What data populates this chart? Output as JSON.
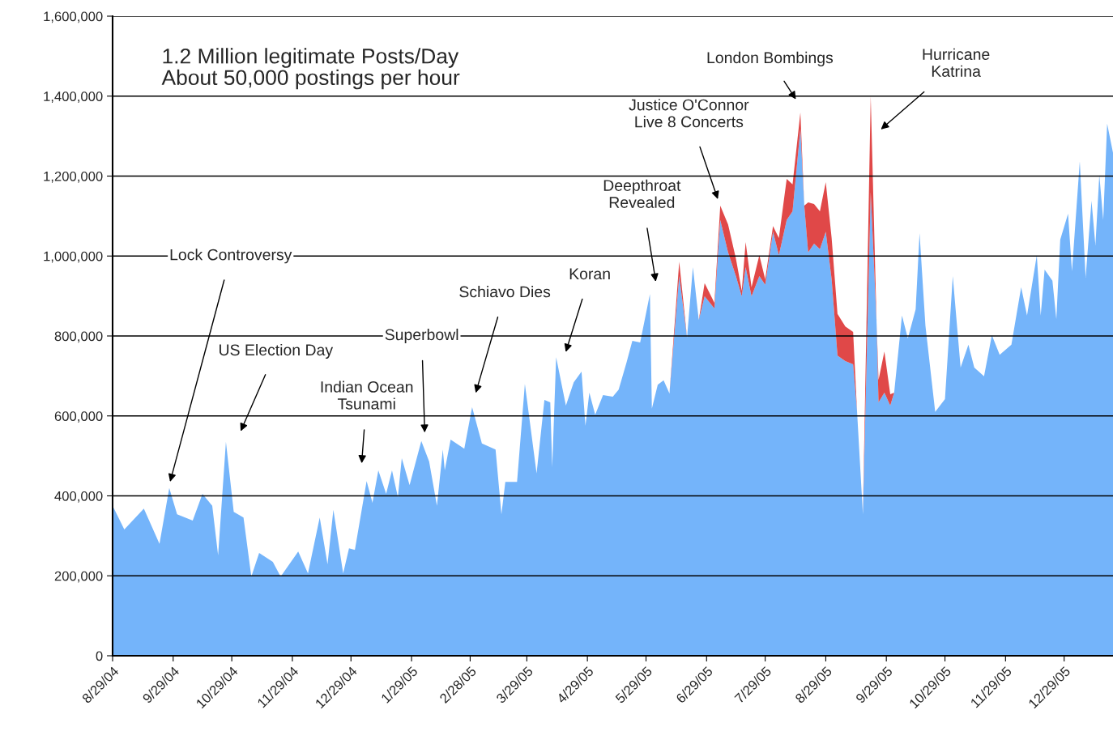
{
  "chart_data": {
    "type": "area",
    "stacked": true,
    "grid": "y",
    "legend": false,
    "x": [
      "2004-08-29",
      "2004-09-04",
      "2004-09-14",
      "2004-09-22",
      "2004-09-27",
      "2004-10-01",
      "2004-10-09",
      "2004-10-14",
      "2004-10-19",
      "2004-10-22",
      "2004-10-26",
      "2004-10-30",
      "2004-11-04",
      "2004-11-08",
      "2004-11-12",
      "2004-11-19",
      "2004-11-23",
      "2004-12-02",
      "2004-12-07",
      "2004-12-13",
      "2004-12-17",
      "2004-12-20",
      "2004-12-25",
      "2004-12-28",
      "2004-12-31",
      "2005-01-06",
      "2005-01-09",
      "2005-01-12",
      "2005-01-16",
      "2005-01-19",
      "2005-01-22",
      "2005-01-24",
      "2005-01-28",
      "2005-02-03",
      "2005-02-07",
      "2005-02-11",
      "2005-02-14",
      "2005-02-15",
      "2005-02-18",
      "2005-02-25",
      "2005-03-01",
      "2005-03-06",
      "2005-03-13",
      "2005-03-16",
      "2005-03-18",
      "2005-03-24",
      "2005-03-28",
      "2005-04-03",
      "2005-04-07",
      "2005-04-10",
      "2005-04-11",
      "2005-04-13",
      "2005-04-18",
      "2005-04-22",
      "2005-04-26",
      "2005-04-28",
      "2005-04-30",
      "2005-05-03",
      "2005-05-07",
      "2005-05-12",
      "2005-05-15",
      "2005-05-19",
      "2005-05-22",
      "2005-05-26",
      "2005-05-31",
      "2005-06-01",
      "2005-06-04",
      "2005-06-07",
      "2005-06-10",
      "2005-06-15",
      "2005-06-19",
      "2005-06-22",
      "2005-06-25",
      "2005-06-28",
      "2005-07-03",
      "2005-07-06",
      "2005-07-10",
      "2005-07-14",
      "2005-07-17",
      "2005-07-19",
      "2005-07-22",
      "2005-07-26",
      "2005-07-29",
      "2005-08-02",
      "2005-08-05",
      "2005-08-09",
      "2005-08-12",
      "2005-08-16",
      "2005-08-18",
      "2005-08-20",
      "2005-08-23",
      "2005-08-26",
      "2005-08-29",
      "2005-09-01",
      "2005-09-04",
      "2005-09-08",
      "2005-09-12",
      "2005-09-14",
      "2005-09-17",
      "2005-09-21",
      "2005-09-24",
      "2005-09-25",
      "2005-09-28",
      "2005-10-01",
      "2005-10-03",
      "2005-10-07",
      "2005-10-10",
      "2005-10-14",
      "2005-10-16",
      "2005-10-19",
      "2005-10-24",
      "2005-10-29",
      "2005-11-02",
      "2005-11-06",
      "2005-11-10",
      "2005-11-13",
      "2005-11-18",
      "2005-11-22",
      "2005-11-26",
      "2005-12-02",
      "2005-12-07",
      "2005-12-10",
      "2005-12-15",
      "2005-12-17",
      "2005-12-19",
      "2005-12-23",
      "2005-12-25",
      "2005-12-27",
      "2005-12-31",
      "2006-01-02",
      "2006-01-06",
      "2006-01-09",
      "2006-01-12",
      "2006-01-14",
      "2006-01-16",
      "2006-01-18",
      "2006-01-20",
      "2006-01-23"
    ],
    "series": [
      {
        "color": "#74b4fa",
        "values": [
          375000,
          316000,
          368000,
          280000,
          420000,
          354000,
          338000,
          405000,
          375000,
          251000,
          535000,
          360000,
          346000,
          198000,
          257000,
          235000,
          198000,
          261000,
          206000,
          346000,
          229000,
          365000,
          206000,
          269000,
          265000,
          437000,
          383000,
          464000,
          405000,
          464000,
          397000,
          494000,
          427000,
          537000,
          486000,
          375000,
          516000,
          464000,
          541000,
          518000,
          622000,
          531000,
          516000,
          354000,
          435000,
          435000,
          680000,
          456000,
          640000,
          634000,
          472000,
          747000,
          626000,
          684000,
          711000,
          575000,
          658000,
          603000,
          652000,
          648000,
          666000,
          733000,
          788000,
          784000,
          905000,
          618000,
          678000,
          689000,
          656000,
          950000,
          796000,
          972000,
          840000,
          899000,
          869000,
          1090000,
          1009000,
          950000,
          899000,
          972000,
          899000,
          950000,
          928000,
          1061000,
          1002000,
          1090000,
          1112000,
          1318000,
          1126000,
          1009000,
          1031000,
          1017000,
          1061000,
          942000,
          751000,
          737000,
          729000,
          612000,
          354000,
          1160000,
          834000,
          634000,
          658000,
          626000,
          658000,
          851000,
          794000,
          867000,
          1057000,
          826000,
          610000,
          642000,
          950000,
          721000,
          778000,
          721000,
          699000,
          802000,
          753000,
          778000,
          922000,
          851000,
          1002000,
          851000,
          966000,
          938000,
          842000,
          1041000,
          1106000,
          962000,
          1237000,
          946000,
          1138000,
          1027000,
          1203000,
          1090000,
          1331000,
          1258000
        ]
      },
      {
        "color": "#e04848",
        "values": [
          0,
          0,
          0,
          0,
          0,
          0,
          0,
          0,
          0,
          0,
          0,
          0,
          0,
          0,
          0,
          0,
          0,
          0,
          0,
          0,
          0,
          0,
          0,
          0,
          0,
          0,
          0,
          0,
          0,
          0,
          0,
          0,
          0,
          0,
          0,
          0,
          0,
          0,
          0,
          0,
          0,
          0,
          0,
          0,
          0,
          0,
          0,
          0,
          0,
          0,
          0,
          0,
          0,
          0,
          0,
          0,
          0,
          0,
          0,
          0,
          0,
          0,
          0,
          0,
          0,
          0,
          0,
          0,
          0,
          36000,
          0,
          0,
          0,
          33000,
          14000,
          36000,
          70000,
          44000,
          14000,
          63000,
          23000,
          52000,
          14000,
          14000,
          43000,
          103000,
          67000,
          41000,
          0,
          125000,
          99000,
          95000,
          124000,
          103000,
          104000,
          87000,
          81000,
          0,
          0,
          240000,
          0,
          56000,
          103000,
          28000,
          0,
          0,
          0,
          0,
          0,
          0,
          0,
          0,
          0,
          0,
          0,
          0,
          0,
          0,
          0,
          0,
          0,
          0,
          0,
          0,
          0,
          0,
          0,
          0,
          0,
          0,
          0,
          0,
          0,
          0,
          0,
          0,
          0,
          0
        ]
      }
    ],
    "xlim": [
      "2004-08-29",
      "2006-01-23"
    ],
    "xticks": [
      {
        "value": "2004-08-29",
        "label": "8/29/04"
      },
      {
        "value": "2004-09-29",
        "label": "9/29/04"
      },
      {
        "value": "2004-10-29",
        "label": "10/29/04"
      },
      {
        "value": "2004-11-29",
        "label": "11/29/04"
      },
      {
        "value": "2004-12-29",
        "label": "12/29/04"
      },
      {
        "value": "2005-01-29",
        "label": "1/29/05"
      },
      {
        "value": "2005-02-28",
        "label": "2/28/05"
      },
      {
        "value": "2005-03-29",
        "label": "3/29/05"
      },
      {
        "value": "2005-04-29",
        "label": "4/29/05"
      },
      {
        "value": "2005-05-29",
        "label": "5/29/05"
      },
      {
        "value": "2005-06-29",
        "label": "6/29/05"
      },
      {
        "value": "2005-07-29",
        "label": "7/29/05"
      },
      {
        "value": "2005-08-29",
        "label": "8/29/05"
      },
      {
        "value": "2005-09-29",
        "label": "9/29/05"
      },
      {
        "value": "2005-10-29",
        "label": "10/29/05"
      },
      {
        "value": "2005-11-29",
        "label": "11/29/05"
      },
      {
        "value": "2005-12-29",
        "label": "12/29/05"
      }
    ],
    "ylim": [
      0,
      1600000
    ],
    "yticks": [
      {
        "value": 0,
        "label": "0"
      },
      {
        "value": 200000,
        "label": "200,000"
      },
      {
        "value": 400000,
        "label": "400,000"
      },
      {
        "value": 600000,
        "label": "600,000"
      },
      {
        "value": 800000,
        "label": "800,000"
      },
      {
        "value": 1000000,
        "label": "1,000,000"
      },
      {
        "value": 1200000,
        "label": "1,200,000"
      },
      {
        "value": 1400000,
        "label": "1,400,000"
      },
      {
        "value": 1600000,
        "label": "1,600,000"
      }
    ],
    "annotations": [
      "1.2 Million legitimate Posts/Day\nAbout 50,000 postings per hour",
      "Lock Controversy",
      "US Election Day",
      "Indian Ocean\nTsunami",
      "Superbowl",
      "Schiavo Dies",
      "Koran",
      "Deepthroat\nRevealed",
      "Justice O'Connor\nLive 8 Concerts",
      "London Bombings",
      "Hurricane\nKatrina"
    ]
  }
}
